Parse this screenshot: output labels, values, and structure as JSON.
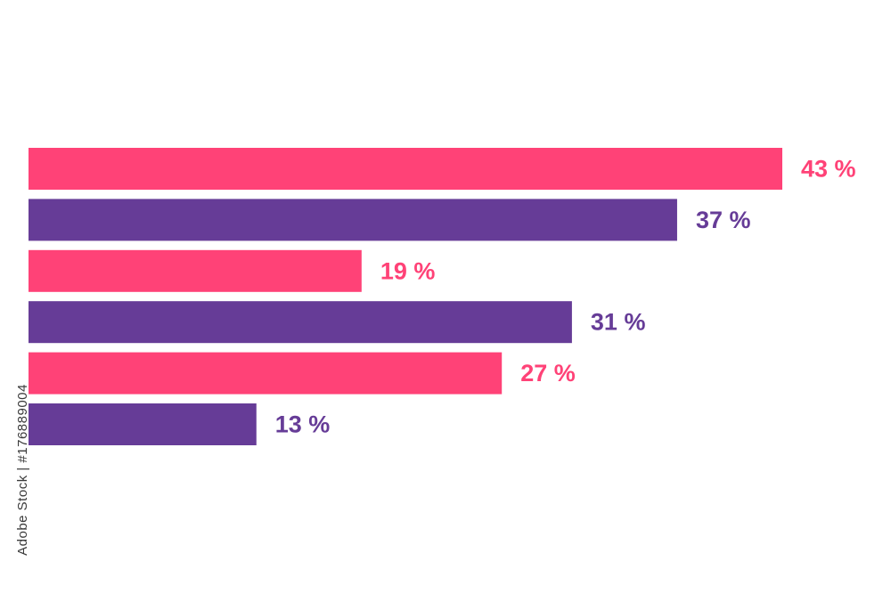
{
  "watermark": {
    "text": "Adobe Stock | #176889004"
  },
  "chart_data": {
    "type": "bar",
    "orientation": "horizontal",
    "title": "",
    "xlabel": "",
    "ylabel": "",
    "xlim": [
      0,
      43
    ],
    "grid": false,
    "legend": "none",
    "bars": [
      {
        "value": 43,
        "label": "43 %",
        "color": "#ff4277"
      },
      {
        "value": 37,
        "label": "37 %",
        "color": "#663c97"
      },
      {
        "value": 19,
        "label": "19 %",
        "color": "#ff4277"
      },
      {
        "value": 31,
        "label": "31 %",
        "color": "#663c97"
      },
      {
        "value": 27,
        "label": "27 %",
        "color": "#ff4277"
      },
      {
        "value": 13,
        "label": "13 %",
        "color": "#663c97"
      }
    ]
  }
}
